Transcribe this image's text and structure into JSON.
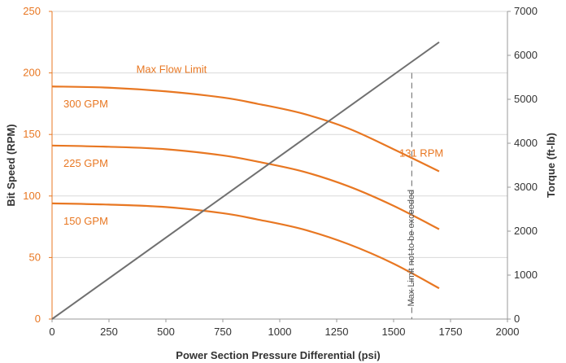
{
  "colors": {
    "flow_curves": "#e87722",
    "torque_line": "#707070",
    "grid": "#d9d9d9",
    "left_axis": "#e87722",
    "max_limit_line": "#7f7f7f"
  },
  "chart_data": {
    "type": "line",
    "xlabel": "Power Section Pressure Differential (psi)",
    "ylabel": "Bit Speed (RPM)",
    "y2label": "Torque (ft-lb)",
    "xlim": [
      0,
      2000
    ],
    "ylim": [
      0,
      250
    ],
    "y2lim": [
      0,
      7000
    ],
    "x_ticks": [
      0,
      250,
      500,
      750,
      1000,
      1250,
      1500,
      1750,
      2000
    ],
    "y_ticks": [
      0,
      50,
      100,
      150,
      200,
      250
    ],
    "y2_ticks": [
      0,
      1000,
      2000,
      3000,
      4000,
      5000,
      6000,
      7000
    ],
    "grid": "horizontal",
    "series": [
      {
        "name": "300 GPM",
        "axis": "left",
        "x": [
          0,
          250,
          500,
          750,
          900,
          1100,
          1300,
          1500,
          1700
        ],
        "values": [
          189,
          188,
          185,
          180,
          175,
          167,
          155,
          138,
          120
        ]
      },
      {
        "name": "225 GPM",
        "axis": "left",
        "x": [
          0,
          250,
          500,
          750,
          900,
          1100,
          1300,
          1500,
          1700
        ],
        "values": [
          141,
          140,
          138,
          133,
          128,
          120,
          108,
          92,
          73
        ]
      },
      {
        "name": "150 GPM",
        "axis": "left",
        "x": [
          0,
          250,
          500,
          750,
          900,
          1100,
          1300,
          1500,
          1700
        ],
        "values": [
          94,
          93,
          91,
          86,
          81,
          73,
          61,
          45,
          25
        ]
      },
      {
        "name": "",
        "axis": "right",
        "x": [
          0,
          1700
        ],
        "values": [
          0,
          6300
        ]
      }
    ],
    "max_limit_x": 1580,
    "max_limit_ytop": 200,
    "annotations": [
      {
        "text": "Max Flow Limit",
        "x": 370,
        "y": 200
      },
      {
        "text": "131 RPM",
        "x": 1525,
        "y": 132
      },
      {
        "text": "Max Limit not to be exceeded",
        "vertical": true,
        "x": 1610,
        "y": 40
      }
    ]
  }
}
